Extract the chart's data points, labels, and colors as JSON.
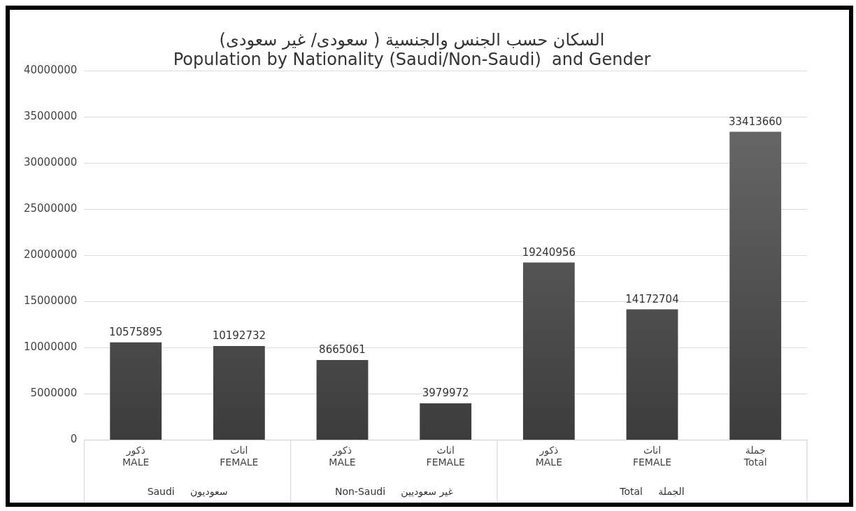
{
  "chart_data": {
    "type": "bar",
    "title": "السكان حسب الجنس والجنسية ( سعودى/ غير سعودى)\nPopulation by Nationality (Saudi/Non-Saudi)  and Gender",
    "categories": [
      "ذكور\nMALE",
      "اناث\nFEMALE",
      "ذكور\nMALE",
      "اناث\nFEMALE",
      "ذكور\nMALE",
      "اناث\nFEMALE",
      "جملة\nTotal"
    ],
    "values": [
      10575895,
      10192732,
      8665061,
      3979972,
      19240956,
      14172704,
      33413660
    ],
    "color": "#6e6e6e",
    "ylim": [
      0,
      40000000
    ],
    "yticks": [
      0,
      5000000,
      10000000,
      15000000,
      20000000,
      25000000,
      30000000,
      35000000,
      40000000
    ],
    "grid": "y",
    "data_labels": true,
    "annotations": [
      "Saudi     سعوديون",
      "Non-Saudi     غير سعوديين",
      "Total     الجملة"
    ]
  }
}
